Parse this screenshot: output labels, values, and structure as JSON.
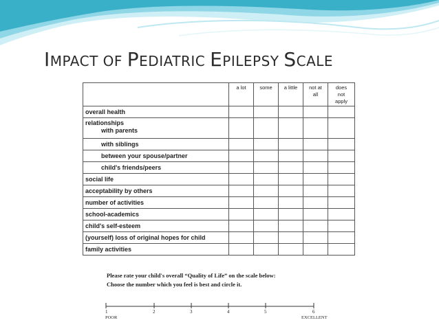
{
  "slide": {
    "title_parts": [
      {
        "cap": "I",
        "rest": "MPACT OF "
      },
      {
        "cap": "P",
        "rest": "EDIATRIC "
      },
      {
        "cap": "E",
        "rest": "PILEPSY "
      },
      {
        "cap": "S",
        "rest": "CALE"
      }
    ],
    "accent_color": "#3ab0c8"
  },
  "table": {
    "columns": [
      "a lot",
      "some",
      "a little",
      "not at\nall",
      "does\nnot\napply"
    ],
    "rows": [
      {
        "label": "overall health",
        "indent": false
      },
      {
        "label": "relationships",
        "sub": "with parents",
        "indent": false
      },
      {
        "label": "with siblings",
        "indent": true
      },
      {
        "label": "between your spouse/partner",
        "indent": true
      },
      {
        "label": "child's friends/peers",
        "indent": true
      },
      {
        "label": "social life",
        "indent": false
      },
      {
        "label": "acceptability by others",
        "indent": false
      },
      {
        "label": "number of activities",
        "indent": false
      },
      {
        "label": "school-academics",
        "indent": false
      },
      {
        "label": "child's self-esteem",
        "indent": false
      },
      {
        "label": "(yourself)  loss of original hopes for child",
        "indent": false
      },
      {
        "label": "family activities",
        "indent": false
      }
    ]
  },
  "rating": {
    "line1": "Please rate your child's overall “Quality of Life” on the scale below:",
    "line2": "Choose the number which you feel is best and circle it.",
    "numbers": [
      "1",
      "2",
      "3",
      "4",
      "5",
      "6"
    ],
    "low_label": "POOR",
    "high_label": "EXCELLENT"
  }
}
